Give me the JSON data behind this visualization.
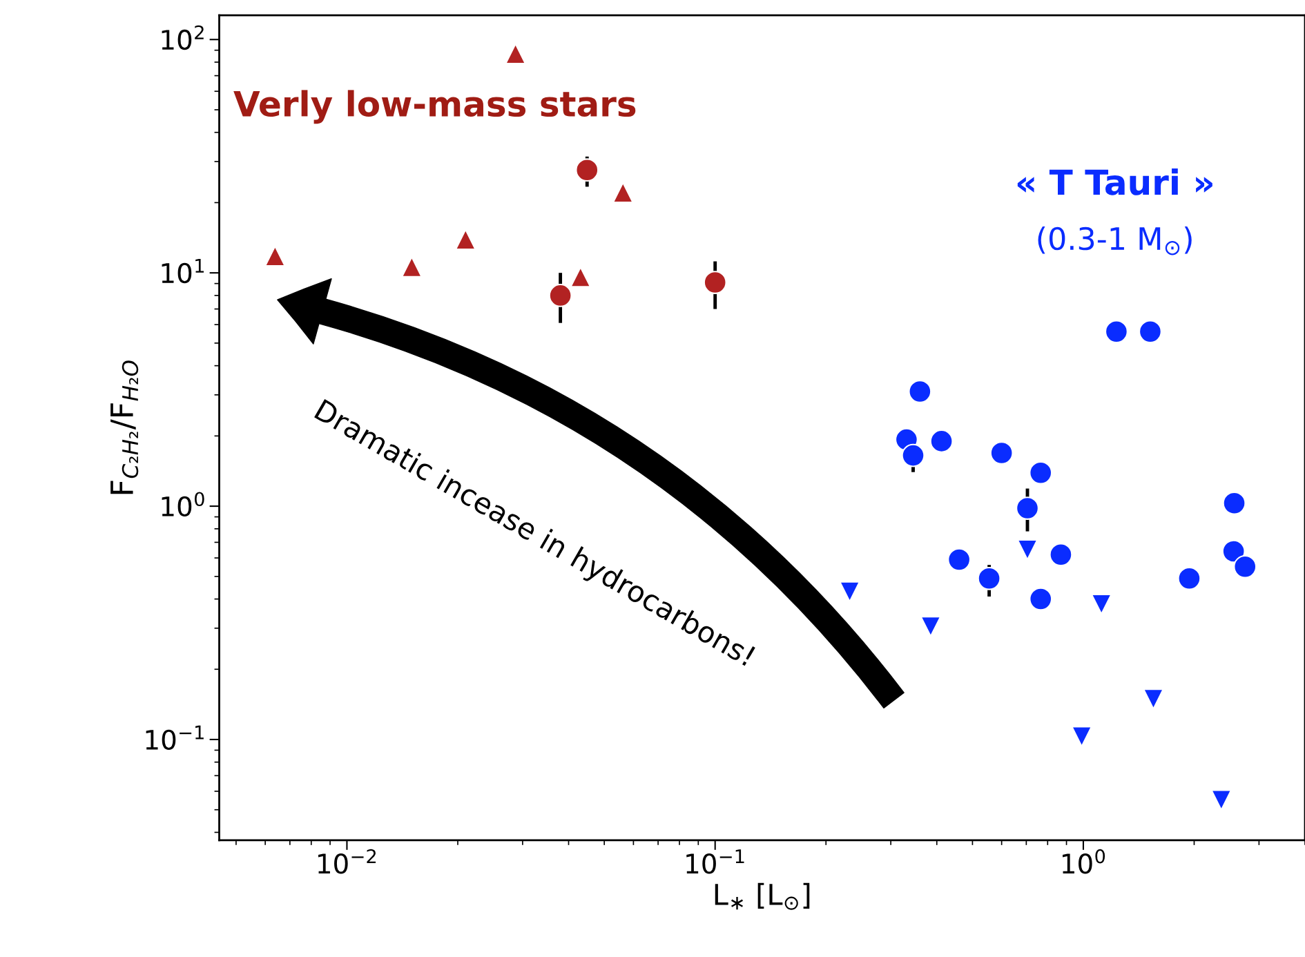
{
  "chart_data": {
    "type": "scatter",
    "xlabel": "L$_{∗}$ [L$_{⊙}$]",
    "ylabel": "F$_{C₂H₂}$/F$_{H₂O}$",
    "log": "xy",
    "grid": false,
    "legend": false,
    "xlim": [
      0.0045,
      4.0
    ],
    "ylim": [
      0.037,
      127
    ],
    "xticks": [
      {
        "value": 0.01,
        "label": "10$^{−2}$"
      },
      {
        "value": 0.1,
        "label": "10$^{−1}$"
      },
      {
        "value": 1,
        "label": "10$^{0}$"
      }
    ],
    "yticks": [
      {
        "value": 0.1,
        "label": "10$^{−1}$"
      },
      {
        "value": 1,
        "label": "10$^{0}$"
      },
      {
        "value": 10,
        "label": "10$^{1}$"
      },
      {
        "value": 100,
        "label": "10$^{2}$"
      }
    ],
    "annotations": [
      "Verly low-mass stars",
      "« T Tauri »",
      "(0.3-1 M$_{⊙}$)",
      "Dramatic incease in hydrocarbons!"
    ],
    "series": [
      {
        "color": "#b22222",
        "marker": "triangle",
        "x": [
          0.00638,
          0.015,
          0.021,
          0.0287,
          0.0431,
          0.0562
        ],
        "values": [
          11.8,
          10.6,
          13.9,
          87,
          9.6,
          22.1
        ]
      },
      {
        "color": "#b22222",
        "marker": "circle",
        "x": [
          0.038,
          0.0449,
          0.1
        ],
        "values": [
          8.0,
          27.6,
          9.1
        ],
        "errors": [
          [
            6.1,
            10
          ],
          [
            23.4,
            31.5
          ],
          [
            7.0,
            11.2
          ]
        ]
      },
      {
        "color": "#0a2cff",
        "marker": "circle",
        "x": [
          1.23,
          1.52,
          0.36,
          0.331,
          0.345,
          0.412,
          0.6,
          0.766,
          0.705,
          0.46,
          0.555,
          0.869,
          0.766,
          1.94,
          2.57,
          2.56,
          2.75
        ],
        "values": [
          5.6,
          5.6,
          3.1,
          1.93,
          1.65,
          1.9,
          1.69,
          1.39,
          0.98,
          0.59,
          0.49,
          0.62,
          0.4,
          0.49,
          1.03,
          0.64,
          0.55
        ],
        "errors": [
          null,
          null,
          null,
          null,
          [
            1.4,
            1.7
          ],
          null,
          null,
          null,
          [
            0.78,
            1.19
          ],
          null,
          [
            0.41,
            0.56
          ],
          null,
          null,
          null,
          null,
          null,
          null
        ]
      },
      {
        "color": "#0a2cff",
        "marker": "triangle_down",
        "x": [
          0.232,
          0.385,
          0.705,
          1.12,
          1.55,
          0.99,
          2.37
        ],
        "values": [
          0.43,
          0.305,
          0.65,
          0.38,
          0.149,
          0.103,
          0.055
        ]
      }
    ]
  }
}
